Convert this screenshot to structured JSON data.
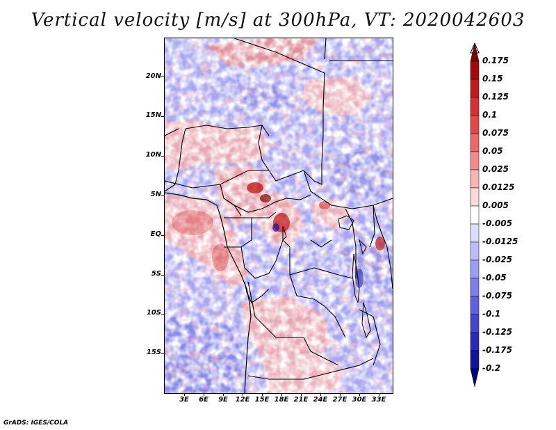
{
  "title": "Vertical velocity [m/s] at 300hPa, VT: 2020042603",
  "credit": "GrADS: IGES/COLA",
  "lat_labels": [
    "20N",
    "15N",
    "10N",
    "5N",
    "EQ",
    "5S",
    "10S",
    "15S"
  ],
  "lon_labels": [
    "3E",
    "6E",
    "9E",
    "12E",
    "15E",
    "18E",
    "21E",
    "24E",
    "27E",
    "30E",
    "33E"
  ],
  "colorbar": {
    "labels": [
      "0.175",
      "0.15",
      "0.125",
      "0.1",
      "0.075",
      "0.05",
      "0.025",
      "0.0125",
      "0.005",
      "-0.005",
      "-0.0125",
      "-0.025",
      "-0.05",
      "-0.075",
      "-0.1",
      "-0.125",
      "-0.175",
      "-0.2"
    ],
    "colors": [
      "#7f0000",
      "#a30a0a",
      "#c11c1c",
      "#d63030",
      "#e24848",
      "#ea6868",
      "#f18c8c",
      "#f7b4b4",
      "#fbd8d8",
      "#ffffff",
      "#dcdcff",
      "#bcbcfa",
      "#9c9cf2",
      "#7e7eea",
      "#6060dc",
      "#4444cc",
      "#2a2ab8",
      "#14149a",
      "#000080"
    ]
  }
}
